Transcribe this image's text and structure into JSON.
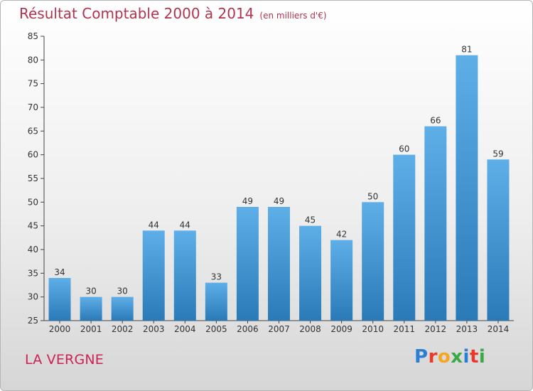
{
  "header": {
    "title": "Résultat Comptable 2000 à 2014",
    "unit": "(en milliers d'€)"
  },
  "footer": {
    "place": "LA VERGNE",
    "logo": "Proxiti",
    "logo_colors": [
      "#2a7fd4",
      "#e8392a",
      "#f5a623",
      "#3aa844",
      "#2a7fd4",
      "#e8392a",
      "#3aa844"
    ]
  },
  "colors": {
    "bar_top": "#5eaee8",
    "bar_bottom": "#2a7ab8",
    "title": "#b0344e",
    "place": "#cc2255"
  },
  "chart_data": {
    "type": "bar",
    "categories": [
      "2000",
      "2001",
      "2002",
      "2003",
      "2004",
      "2005",
      "2006",
      "2007",
      "2008",
      "2009",
      "2010",
      "2011",
      "2012",
      "2013",
      "2014"
    ],
    "values": [
      34,
      30,
      30,
      44,
      44,
      33,
      49,
      49,
      45,
      42,
      50,
      60,
      66,
      81,
      59
    ],
    "title": "Résultat Comptable 2000 à 2014",
    "subtitle": "(en milliers d'€)",
    "ylim": [
      25,
      85
    ],
    "yticks": [
      25,
      30,
      35,
      40,
      45,
      50,
      55,
      60,
      65,
      70,
      75,
      80,
      85
    ],
    "grid": false,
    "data_labels": true
  }
}
